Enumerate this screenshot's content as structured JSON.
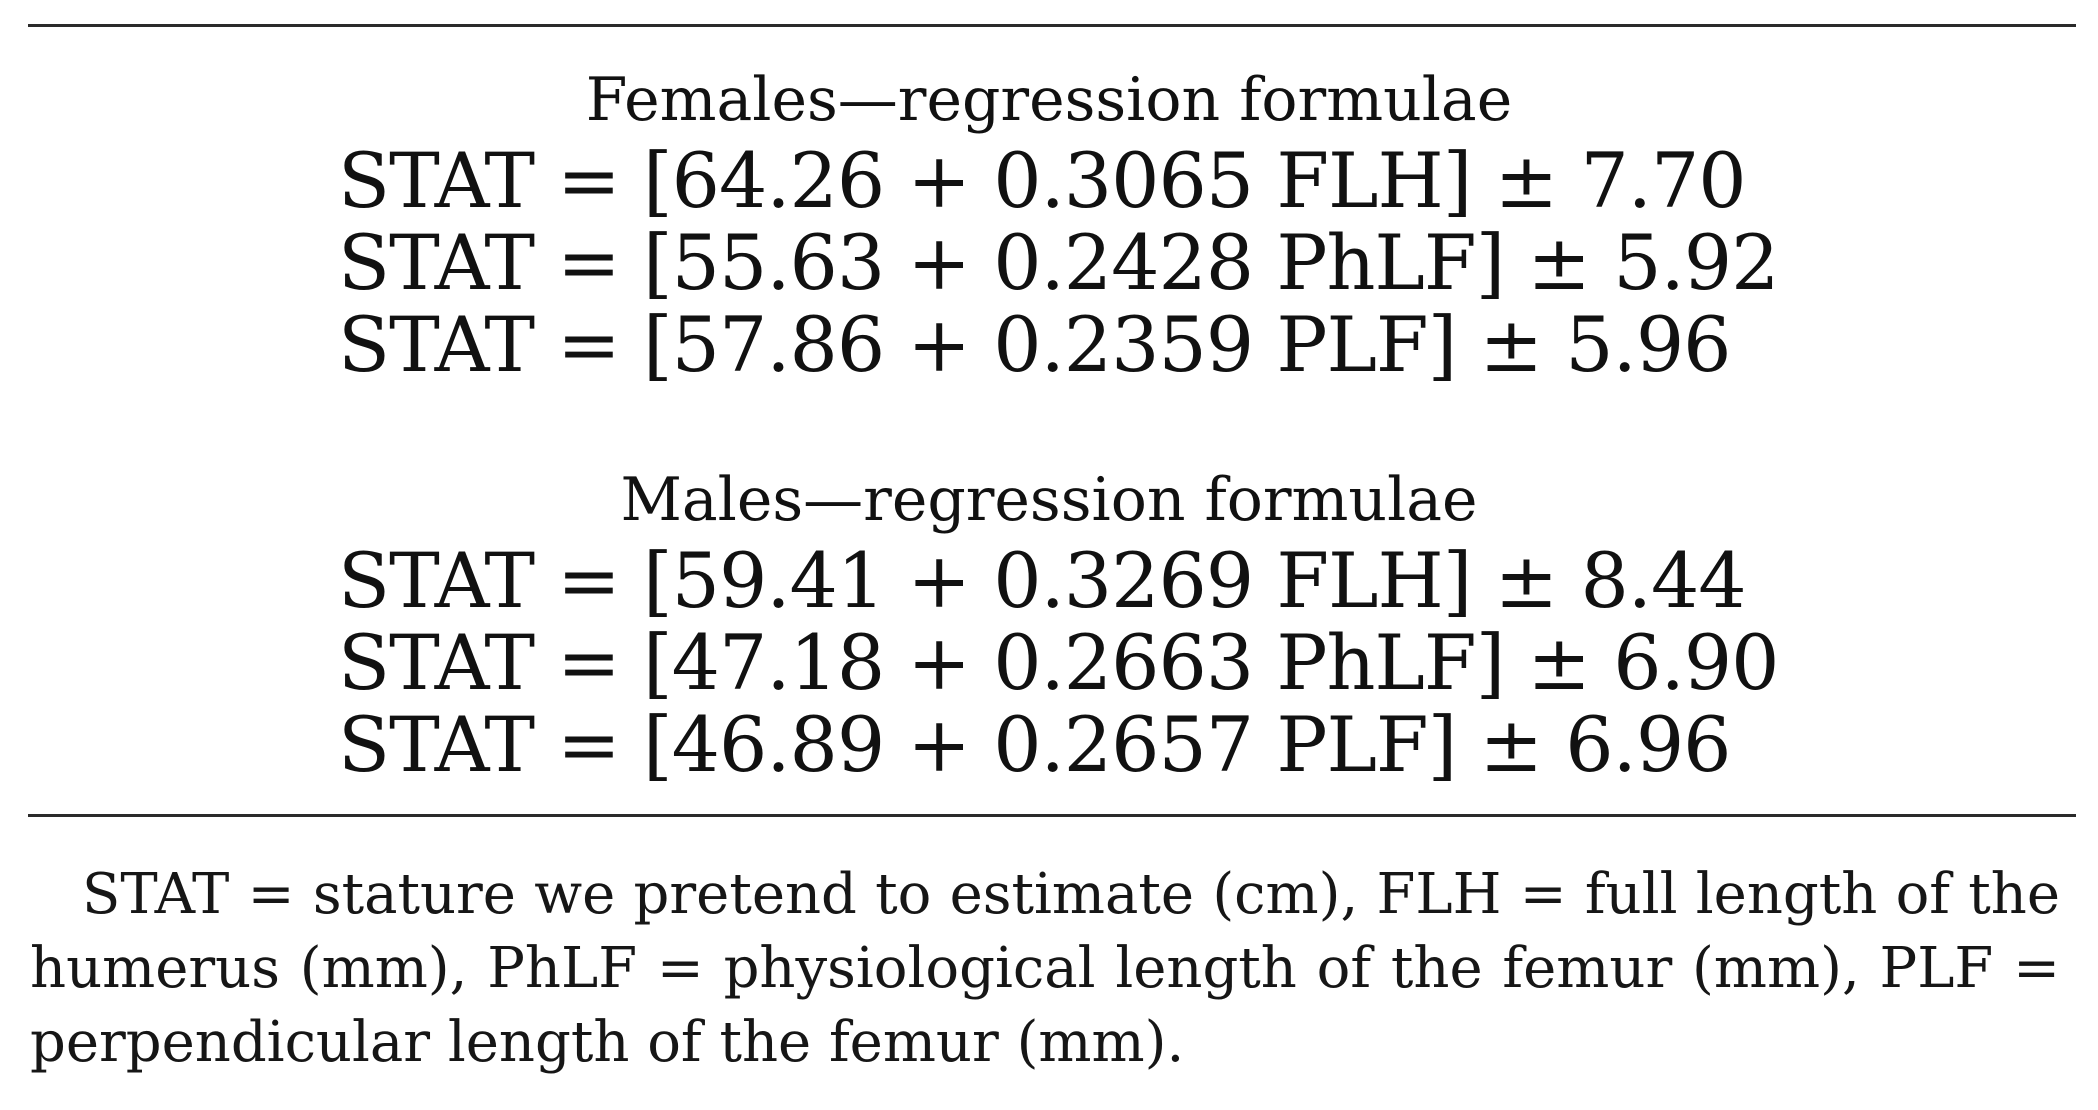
{
  "females": {
    "heading": "Females—regression formulae",
    "formulas": [
      "STAT = [64.26 + 0.3065 FLH] ± 7.70",
      "STAT = [55.63 + 0.2428 PhLF] ± 5.92",
      "STAT = [57.86 + 0.2359 PLF] ± 5.96"
    ]
  },
  "males": {
    "heading": "Males—regression formulae",
    "formulas": [
      "STAT = [59.41 + 0.3269 FLH] ± 8.44",
      "STAT = [47.18 + 0.2663 PhLF] ± 6.90",
      "STAT = [46.89 + 0.2657 PLF] ± 6.96"
    ]
  },
  "footnote": "STAT = stature we pretend to estimate (cm), FLH = full length of the humerus (mm), PhLF = physiological length of the femur (mm), PLF = perpendicular length of the femur (mm)."
}
